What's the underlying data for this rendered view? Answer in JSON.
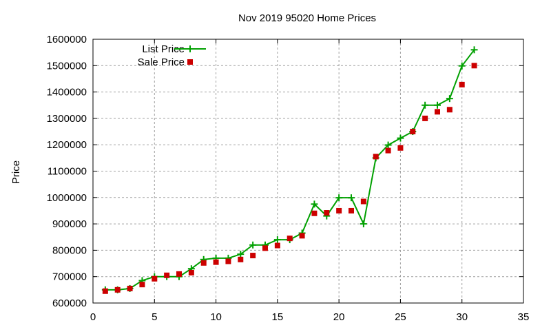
{
  "chart_data": {
    "type": "line",
    "title": "Nov 2019 95020 Home Prices",
    "xlabel": "",
    "ylabel": "Price",
    "xlim": [
      0,
      35
    ],
    "ylim": [
      600000,
      1600000
    ],
    "xticks": [
      0,
      5,
      10,
      15,
      20,
      25,
      30,
      35
    ],
    "yticks": [
      600000,
      700000,
      800000,
      900000,
      1000000,
      1100000,
      1200000,
      1300000,
      1400000,
      1500000,
      1600000
    ],
    "grid": true,
    "legend_position": "top-left",
    "x": [
      1,
      2,
      3,
      4,
      5,
      6,
      7,
      8,
      9,
      10,
      11,
      12,
      13,
      14,
      15,
      16,
      17,
      18,
      19,
      20,
      21,
      22,
      23,
      24,
      25,
      26,
      27,
      28,
      29,
      30,
      31
    ],
    "series": [
      {
        "name": "List Price",
        "style": "linespoints",
        "color": "#00a000",
        "values": [
          650000,
          650000,
          655000,
          685000,
          700000,
          700000,
          700000,
          730000,
          765000,
          770000,
          770000,
          785000,
          820000,
          820000,
          840000,
          840000,
          865000,
          975000,
          930000,
          999000,
          999000,
          900000,
          1150000,
          1199000,
          1225000,
          1250000,
          1350000,
          1350000,
          1375000,
          1499000,
          1560000
        ]
      },
      {
        "name": "Sale Price",
        "style": "points",
        "color": "#cc0000",
        "values": [
          645000,
          650000,
          655000,
          670000,
          692000,
          705000,
          710000,
          715000,
          752000,
          755000,
          758000,
          765000,
          780000,
          808000,
          818000,
          845000,
          855000,
          940000,
          942000,
          950000,
          950000,
          985000,
          1155000,
          1178000,
          1188000,
          1250000,
          1300000,
          1325000,
          1333000,
          1428000,
          1500000
        ]
      }
    ]
  }
}
